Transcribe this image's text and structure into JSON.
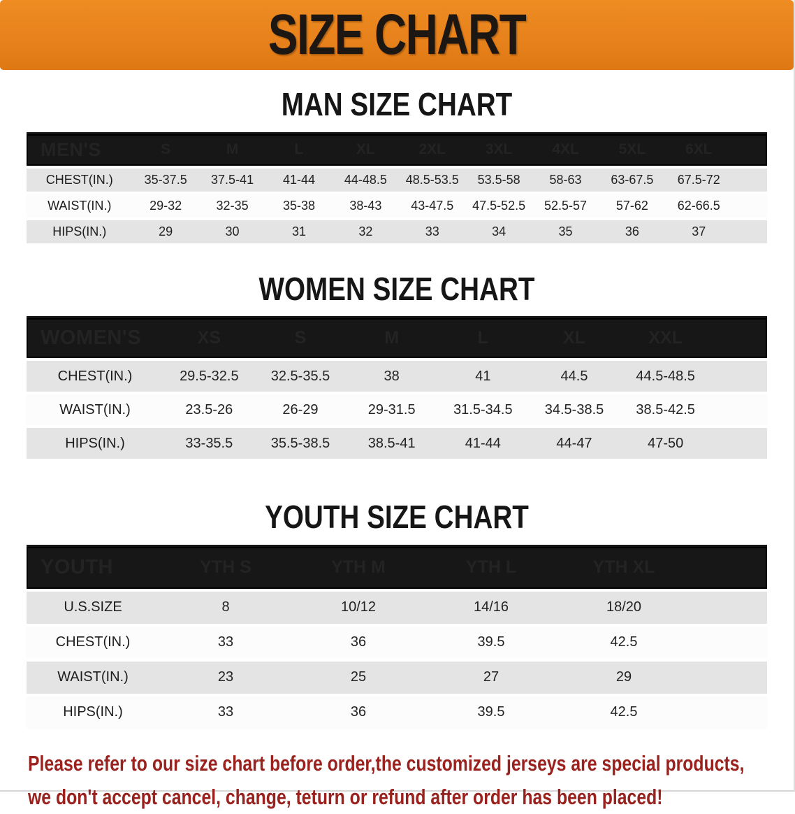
{
  "banner": {
    "title": "SIZE CHART",
    "bg_color": "#E8821C",
    "text_color": "#1C1713"
  },
  "sections": [
    {
      "title": "MAN SIZE CHART",
      "header_label": "MEN'S",
      "columns": [
        "S",
        "M",
        "L",
        "XL",
        "2XL",
        "3XL",
        "4XL",
        "5XL",
        "6XL"
      ],
      "rows": [
        {
          "label": "CHEST(IN.)",
          "values": [
            "35-37.5",
            "37.5-41",
            "41-44",
            "44-48.5",
            "48.5-53.5",
            "53.5-58",
            "58-63",
            "63-67.5",
            "67.5-72"
          ]
        },
        {
          "label": "WAIST(IN.)",
          "values": [
            "29-32",
            "32-35",
            "35-38",
            "38-43",
            "43-47.5",
            "47.5-52.5",
            "52.5-57",
            "57-62",
            "62-66.5"
          ]
        },
        {
          "label": "HIPS(IN.)",
          "values": [
            "29",
            "30",
            "31",
            "32",
            "33",
            "34",
            "35",
            "36",
            "37"
          ]
        }
      ]
    },
    {
      "title": "WOMEN SIZE CHART",
      "header_label": "WOMEN'S",
      "columns": [
        "XS",
        "S",
        "M",
        "L",
        "XL",
        "XXL"
      ],
      "rows": [
        {
          "label": "CHEST(IN.)",
          "values": [
            "29.5-32.5",
            "32.5-35.5",
            "38",
            "41",
            "44.5",
            "44.5-48.5"
          ]
        },
        {
          "label": "WAIST(IN.)",
          "values": [
            "23.5-26",
            "26-29",
            "29-31.5",
            "31.5-34.5",
            "34.5-38.5",
            "38.5-42.5"
          ]
        },
        {
          "label": "HIPS(IN.)",
          "values": [
            "33-35.5",
            "35.5-38.5",
            "38.5-41",
            "41-44",
            "44-47",
            "47-50"
          ]
        }
      ]
    },
    {
      "title": "YOUTH SIZE CHART",
      "header_label": "YOUTH",
      "columns": [
        "YTH S",
        "YTH M",
        "YTH L",
        "YTH XL"
      ],
      "rows": [
        {
          "label": "U.S.SIZE",
          "values": [
            "8",
            "10/12",
            "14/16",
            "18/20"
          ]
        },
        {
          "label": "CHEST(IN.)",
          "values": [
            "33",
            "36",
            "39.5",
            "42.5"
          ]
        },
        {
          "label": "WAIST(IN.)",
          "values": [
            "23",
            "25",
            "27",
            "29"
          ]
        },
        {
          "label": "HIPS(IN.)",
          "values": [
            "33",
            "36",
            "39.5",
            "42.5"
          ]
        }
      ]
    }
  ],
  "disclaimer": {
    "line1": "Please refer to our size chart before order,the customized jerseys are special products,",
    "line2": "we don't accept cancel, change, teturn or refund after order has been placed!",
    "color": "#9A221E"
  },
  "chart_data": [
    {
      "type": "table",
      "title": "MAN SIZE CHART",
      "columns": [
        "MEN'S",
        "S",
        "M",
        "L",
        "XL",
        "2XL",
        "3XL",
        "4XL",
        "5XL",
        "6XL"
      ],
      "rows": [
        [
          "CHEST(IN.)",
          "35-37.5",
          "37.5-41",
          "41-44",
          "44-48.5",
          "48.5-53.5",
          "53.5-58",
          "58-63",
          "63-67.5",
          "67.5-72"
        ],
        [
          "WAIST(IN.)",
          "29-32",
          "32-35",
          "35-38",
          "38-43",
          "43-47.5",
          "47.5-52.5",
          "52.5-57",
          "57-62",
          "62-66.5"
        ],
        [
          "HIPS(IN.)",
          "29",
          "30",
          "31",
          "32",
          "33",
          "34",
          "35",
          "36",
          "37"
        ]
      ]
    },
    {
      "type": "table",
      "title": "WOMEN SIZE CHART",
      "columns": [
        "WOMEN'S",
        "XS",
        "S",
        "M",
        "L",
        "XL",
        "XXL"
      ],
      "rows": [
        [
          "CHEST(IN.)",
          "29.5-32.5",
          "32.5-35.5",
          "38",
          "41",
          "44.5",
          "44.5-48.5"
        ],
        [
          "WAIST(IN.)",
          "23.5-26",
          "26-29",
          "29-31.5",
          "31.5-34.5",
          "34.5-38.5",
          "38.5-42.5"
        ],
        [
          "HIPS(IN.)",
          "33-35.5",
          "35.5-38.5",
          "38.5-41",
          "41-44",
          "44-47",
          "47-50"
        ]
      ]
    },
    {
      "type": "table",
      "title": "YOUTH SIZE CHART",
      "columns": [
        "YOUTH",
        "YTH S",
        "YTH M",
        "YTH L",
        "YTH XL"
      ],
      "rows": [
        [
          "U.S.SIZE",
          "8",
          "10/12",
          "14/16",
          "18/20"
        ],
        [
          "CHEST(IN.)",
          "33",
          "36",
          "39.5",
          "42.5"
        ],
        [
          "WAIST(IN.)",
          "23",
          "25",
          "27",
          "29"
        ],
        [
          "HIPS(IN.)",
          "33",
          "36",
          "39.5",
          "42.5"
        ]
      ]
    }
  ]
}
